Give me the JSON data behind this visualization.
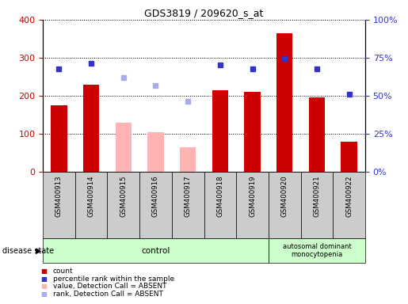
{
  "title": "GDS3819 / 209620_s_at",
  "samples": [
    "GSM400913",
    "GSM400914",
    "GSM400915",
    "GSM400916",
    "GSM400917",
    "GSM400918",
    "GSM400919",
    "GSM400920",
    "GSM400921",
    "GSM400922"
  ],
  "count_values": [
    175,
    230,
    null,
    null,
    null,
    215,
    210,
    365,
    195,
    80
  ],
  "absent_value_values": [
    null,
    null,
    130,
    105,
    65,
    null,
    null,
    null,
    null,
    null
  ],
  "percentile_rank_values": [
    270,
    285,
    null,
    null,
    null,
    282,
    270,
    297,
    270,
    205
  ],
  "absent_rank_values": [
    null,
    null,
    248,
    228,
    185,
    null,
    null,
    null,
    null,
    null
  ],
  "count_color": "#cc0000",
  "absent_value_color": "#ffb3b3",
  "percentile_rank_color": "#3333cc",
  "absent_rank_color": "#aaaaee",
  "bar_width": 0.5,
  "ylim_left": [
    0,
    400
  ],
  "ylim_right": [
    0,
    100
  ],
  "yticks_left": [
    0,
    100,
    200,
    300,
    400
  ],
  "yticks_right": [
    0,
    25,
    50,
    75,
    100
  ],
  "ytick_labels_right": [
    "0%",
    "25%",
    "50%",
    "75%",
    "100%"
  ],
  "grid_color": "#000000",
  "plot_bg_color": "#ffffff",
  "control_count": 7,
  "control_label": "control",
  "disease_label": "autosomal dominant\nmonocytopenia",
  "disease_state_label": "disease state",
  "group_bg_color": "#ccffcc",
  "xlabel_area_color": "#cccccc",
  "legend_entries": [
    "count",
    "percentile rank within the sample",
    "value, Detection Call = ABSENT",
    "rank, Detection Call = ABSENT"
  ],
  "legend_colors": [
    "#cc0000",
    "#3333cc",
    "#ffb3b3",
    "#aaaaee"
  ]
}
